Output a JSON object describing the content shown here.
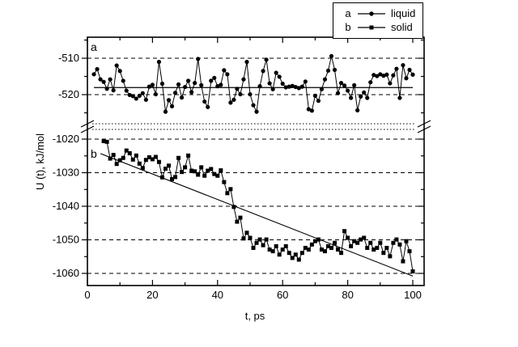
{
  "figure": {
    "background": "#ffffff",
    "line_color": "#000000"
  },
  "axes": {
    "x_title": "t, ps",
    "y_title": "U (t), kJ/mol"
  },
  "annotations": {
    "a": "a",
    "b": "b"
  },
  "legend": {
    "entries": [
      {
        "key": "a",
        "label": "liquid",
        "marker": "circle"
      },
      {
        "key": "b",
        "label": "solid",
        "marker": "square"
      }
    ]
  },
  "chart_data": {
    "type": "line",
    "title": "",
    "xlabel": "t, ps",
    "ylabel": "U (t), kJ/mol",
    "grid": "horizontal-dashed",
    "legend_position": "top-right",
    "x_axis": {
      "range": [
        0,
        103.5
      ],
      "ticks_major": [
        0,
        20,
        40,
        60,
        80,
        100
      ],
      "ticks_minor": [
        10,
        30,
        50,
        70,
        90
      ],
      "tick_labels": [
        "0",
        "20",
        "40",
        "60",
        "80",
        "100"
      ]
    },
    "y_axis_break": true,
    "panels": {
      "upper": {
        "value_range": [
          -527.8,
          -504.2
        ],
        "ticks_major": [
          -510,
          -520
        ],
        "ticks_minor": [
          -505,
          -515,
          -525
        ],
        "tick_labels": [
          "-510",
          "-520"
        ],
        "gridlines": [
          -510,
          -520
        ]
      },
      "lower": {
        "value_range": [
          -1063.6,
          -1017.1
        ],
        "ticks_major": [
          -1020,
          -1030,
          -1040,
          -1050,
          -1060
        ],
        "ticks_minor": [
          -1025,
          -1035,
          -1045,
          -1055
        ],
        "tick_labels": [
          "-1020",
          "-1030",
          "-1040",
          "-1050",
          "-1060"
        ],
        "gridlines": [
          -1020,
          -1030,
          -1040,
          -1050,
          -1060
        ]
      }
    },
    "series": [
      {
        "name": "liquid",
        "key": "a",
        "panel": "upper",
        "marker": "circle",
        "t_start": 2,
        "t_step": 1,
        "U": [
          -514.4,
          -513.0,
          -515.8,
          -516.5,
          -518.4,
          -515.8,
          -518.8,
          -512.0,
          -513.5,
          -516.2,
          -518.9,
          -520.1,
          -520.4,
          -521.1,
          -520.3,
          -519.6,
          -521.4,
          -517.8,
          -517.3,
          -519.9,
          -511.0,
          -517.0,
          -524.7,
          -521.5,
          -523.2,
          -519.5,
          -517.2,
          -520.8,
          -517.9,
          -516.2,
          -519.3,
          -516.8,
          -510.2,
          -517.4,
          -521.9,
          -523.4,
          -516.2,
          -515.4,
          -517.7,
          -517.3,
          -513.3,
          -514.4,
          -522.2,
          -521.4,
          -518.4,
          -519.9,
          -515.8,
          -511.0,
          -519.9,
          -522.9,
          -524.7,
          -517.7,
          -513.5,
          -510.4,
          -516.9,
          -518.5,
          -514.0,
          -515.1,
          -517.0,
          -518.0,
          -517.8,
          -517.6,
          -517.9,
          -518.2,
          -517.8,
          -516.4,
          -524.0,
          -524.4,
          -520.3,
          -521.7,
          -518.5,
          -515.8,
          -513.4,
          -509.4,
          -513.2,
          -519.6,
          -516.8,
          -517.5,
          -518.9,
          -520.9,
          -517.4,
          -524.3,
          -520.5,
          -519.4,
          -520.9,
          -516.6,
          -514.6,
          -514.9,
          -514.4,
          -514.8,
          -514.5,
          -516.9,
          -514.7,
          -512.9,
          -520.9,
          -511.9,
          -515.5,
          -513.2,
          -514.5
        ]
      },
      {
        "name": "solid",
        "key": "b",
        "panel": "lower",
        "marker": "square",
        "t_start": 5,
        "t_step": 1,
        "U": [
          -1020.6,
          -1020.8,
          -1025.8,
          -1024.7,
          -1027.4,
          -1026.3,
          -1025.6,
          -1023.4,
          -1024.2,
          -1026.1,
          -1024.9,
          -1027.3,
          -1028.6,
          -1026.2,
          -1025.4,
          -1026.0,
          -1025.3,
          -1026.8,
          -1031.4,
          -1028.8,
          -1027.9,
          -1031.9,
          -1031.3,
          -1025.6,
          -1029.8,
          -1028.4,
          -1024.9,
          -1029.4,
          -1029.6,
          -1030.6,
          -1028.4,
          -1030.9,
          -1029.4,
          -1028.9,
          -1030.4,
          -1030.9,
          -1029.3,
          -1032.8,
          -1036.1,
          -1034.9,
          -1040.2,
          -1044.6,
          -1043.4,
          -1049.6,
          -1047.9,
          -1049.4,
          -1052.4,
          -1050.9,
          -1049.9,
          -1051.6,
          -1049.9,
          -1052.9,
          -1053.4,
          -1051.9,
          -1054.4,
          -1052.9,
          -1051.9,
          -1053.9,
          -1055.4,
          -1054.4,
          -1055.9,
          -1053.9,
          -1052.4,
          -1052.9,
          -1051.4,
          -1050.4,
          -1049.9,
          -1052.9,
          -1053.4,
          -1051.9,
          -1052.4,
          -1050.9,
          -1052.9,
          -1053.9,
          -1047.4,
          -1049.4,
          -1051.9,
          -1050.4,
          -1050.9,
          -1049.9,
          -1049.4,
          -1052.4,
          -1050.9,
          -1052.9,
          -1052.4,
          -1050.9,
          -1053.9,
          -1052.4,
          -1054.9,
          -1050.9,
          -1049.9,
          -1051.4,
          -1056.4,
          -1050.4,
          -1053.4,
          -1059.4
        ]
      }
    ],
    "reference_lines": [
      {
        "name": "liquid-mean-line",
        "panel": "upper",
        "type": "horizontal",
        "value": -518.05,
        "t_start": 2,
        "t_end": 100
      },
      {
        "name": "solid-trend-line",
        "panel": "lower",
        "type": "segment",
        "t1": 4,
        "v1": -1024.3,
        "t2": 100,
        "v2": -1060.8
      }
    ]
  }
}
